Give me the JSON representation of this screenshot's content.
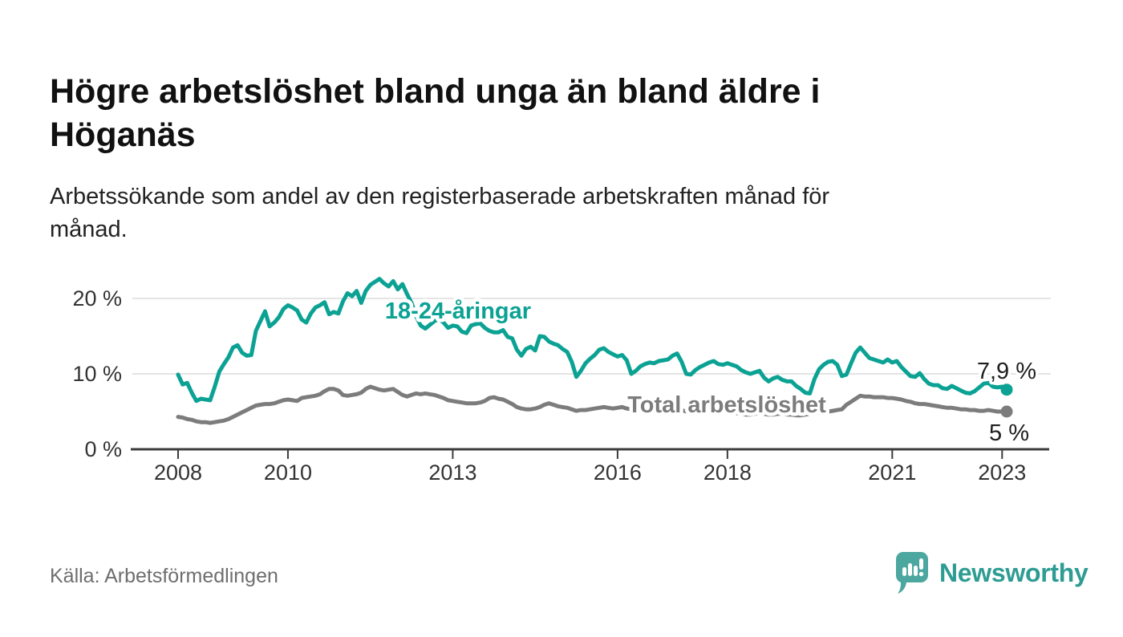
{
  "title": "Högre arbetslöshet bland unga än bland äldre i Höganäs",
  "subtitle": "Arbetssökande som andel av den registerbaserade arbetskraften månad för månad.",
  "source": "Källa: Arbetsförmedlingen",
  "logo": {
    "text": "Newsworthy",
    "icon": "newsworthy-chart-bubble-icon",
    "icon_color": "#4ca7a0",
    "text_color": "#2e9c93"
  },
  "colors": {
    "young_series": "#0ba294",
    "total_series": "#7c7c7c",
    "gridline": "#dbdbdb",
    "axis": "#3c3c3c"
  },
  "chart_data": {
    "type": "line",
    "title": "Högre arbetslöshet bland unga än bland äldre i Höganäs",
    "subtitle": "Arbetssökande som andel av den registerbaserade arbetskraften månad för månad.",
    "x_unit": "month",
    "x_start": "2008-01",
    "x_end": "2023-02",
    "grid": "horizontal",
    "legend_position": "inline-labels",
    "ylim": [
      0,
      24
    ],
    "y_ticks": [
      "0 %",
      "10 %",
      "20 %"
    ],
    "y_tick_values": [
      0,
      10,
      20
    ],
    "x_tick_labels": [
      "2008",
      "2010",
      "2013",
      "2016",
      "2018",
      "2021",
      "2023"
    ],
    "x_tick_month_index": [
      0,
      24,
      60,
      96,
      120,
      156,
      180
    ],
    "series": [
      {
        "name": "18-24-åringar",
        "color": "#0ba294",
        "end_label": "7,9 %",
        "end_value": 7.9,
        "values": [
          9.9,
          8.6,
          8.8,
          7.5,
          6.4,
          6.7,
          6.6,
          6.5,
          8.3,
          10.3,
          11.3,
          12.2,
          13.5,
          13.8,
          12.8,
          12.4,
          12.5,
          15.7,
          17.0,
          18.3,
          16.3,
          16.8,
          17.5,
          18.6,
          19.1,
          18.8,
          18.4,
          17.2,
          16.8,
          18.0,
          18.8,
          19.1,
          19.5,
          17.9,
          18.2,
          18.0,
          19.6,
          20.7,
          20.3,
          21.0,
          19.4,
          21.0,
          21.8,
          22.2,
          22.6,
          22.0,
          21.6,
          22.3,
          21.2,
          21.9,
          20.6,
          19.4,
          17.6,
          16.4,
          16.0,
          16.5,
          17.0,
          17.3,
          16.8,
          16.1,
          16.4,
          16.3,
          15.6,
          15.4,
          16.4,
          16.6,
          16.7,
          16.1,
          15.7,
          15.5,
          15.5,
          15.8,
          14.9,
          14.7,
          13.2,
          12.4,
          13.3,
          13.6,
          13.1,
          15.0,
          14.9,
          14.3,
          14.0,
          13.8,
          13.3,
          12.9,
          11.6,
          9.6,
          10.4,
          11.4,
          12.0,
          12.5,
          13.2,
          13.4,
          12.9,
          12.6,
          12.3,
          12.5,
          11.8,
          10.0,
          10.4,
          11.0,
          11.3,
          11.5,
          11.4,
          11.7,
          11.8,
          11.9,
          12.4,
          12.7,
          11.6,
          10.0,
          9.9,
          10.5,
          10.9,
          11.2,
          11.5,
          11.7,
          11.3,
          11.2,
          11.4,
          11.2,
          11.0,
          10.5,
          10.2,
          10.0,
          10.2,
          10.4,
          9.5,
          9.0,
          9.4,
          9.6,
          9.2,
          9.0,
          9.0,
          8.4,
          8.0,
          7.5,
          7.4,
          9.3,
          10.6,
          11.2,
          11.6,
          11.7,
          11.2,
          9.7,
          9.9,
          11.4,
          12.8,
          13.5,
          12.8,
          12.1,
          11.9,
          11.7,
          11.5,
          11.9,
          11.5,
          11.7,
          10.9,
          10.3,
          9.7,
          9.6,
          10.1,
          9.3,
          8.7,
          8.5,
          8.5,
          8.1,
          8.0,
          8.4,
          8.1,
          7.8,
          7.5,
          7.4,
          7.7,
          8.2,
          8.7,
          8.8,
          8.3,
          8.2,
          8.3,
          7.9
        ]
      },
      {
        "name": "Total arbetslöshet",
        "color": "#7c7c7c",
        "end_label": "5 %",
        "end_value": 5,
        "values": [
          4.3,
          4.2,
          4.0,
          3.9,
          3.7,
          3.6,
          3.6,
          3.5,
          3.6,
          3.7,
          3.8,
          4.0,
          4.3,
          4.6,
          4.9,
          5.2,
          5.5,
          5.8,
          5.9,
          6.0,
          6.0,
          6.1,
          6.3,
          6.5,
          6.6,
          6.5,
          6.4,
          6.8,
          6.9,
          7.0,
          7.1,
          7.3,
          7.7,
          8.0,
          8.0,
          7.8,
          7.2,
          7.1,
          7.2,
          7.3,
          7.5,
          8.0,
          8.3,
          8.1,
          7.9,
          7.8,
          7.9,
          8.0,
          7.6,
          7.2,
          7.0,
          7.2,
          7.4,
          7.3,
          7.4,
          7.3,
          7.2,
          7.0,
          6.8,
          6.5,
          6.4,
          6.3,
          6.2,
          6.1,
          6.1,
          6.1,
          6.2,
          6.4,
          6.8,
          6.9,
          6.7,
          6.6,
          6.3,
          6.0,
          5.6,
          5.4,
          5.3,
          5.3,
          5.4,
          5.6,
          5.9,
          6.1,
          5.9,
          5.7,
          5.6,
          5.5,
          5.3,
          5.1,
          5.2,
          5.2,
          5.3,
          5.4,
          5.5,
          5.6,
          5.5,
          5.4,
          5.5,
          5.6,
          5.4,
          5.3,
          5.2,
          5.3,
          5.4,
          5.3,
          5.2,
          5.3,
          5.4,
          5.3,
          5.2,
          5.3,
          5.2,
          5.0,
          4.9,
          5.0,
          5.1,
          5.2,
          5.1,
          5.0,
          4.9,
          5.0,
          5.0,
          4.9,
          4.8,
          4.7,
          4.6,
          4.6,
          4.7,
          4.8,
          4.7,
          4.6,
          4.6,
          4.7,
          4.7,
          4.6,
          4.6,
          4.5,
          4.5,
          4.6,
          4.7,
          4.8,
          4.9,
          5.0,
          5.0,
          5.1,
          5.2,
          5.3,
          5.9,
          6.3,
          6.7,
          7.1,
          7.0,
          7.0,
          6.9,
          6.9,
          6.9,
          6.8,
          6.8,
          6.7,
          6.6,
          6.4,
          6.3,
          6.1,
          6.0,
          6.0,
          5.9,
          5.8,
          5.7,
          5.6,
          5.5,
          5.5,
          5.4,
          5.3,
          5.3,
          5.2,
          5.2,
          5.1,
          5.1,
          5.2,
          5.1,
          5.0,
          5.0,
          5.0
        ]
      }
    ]
  }
}
